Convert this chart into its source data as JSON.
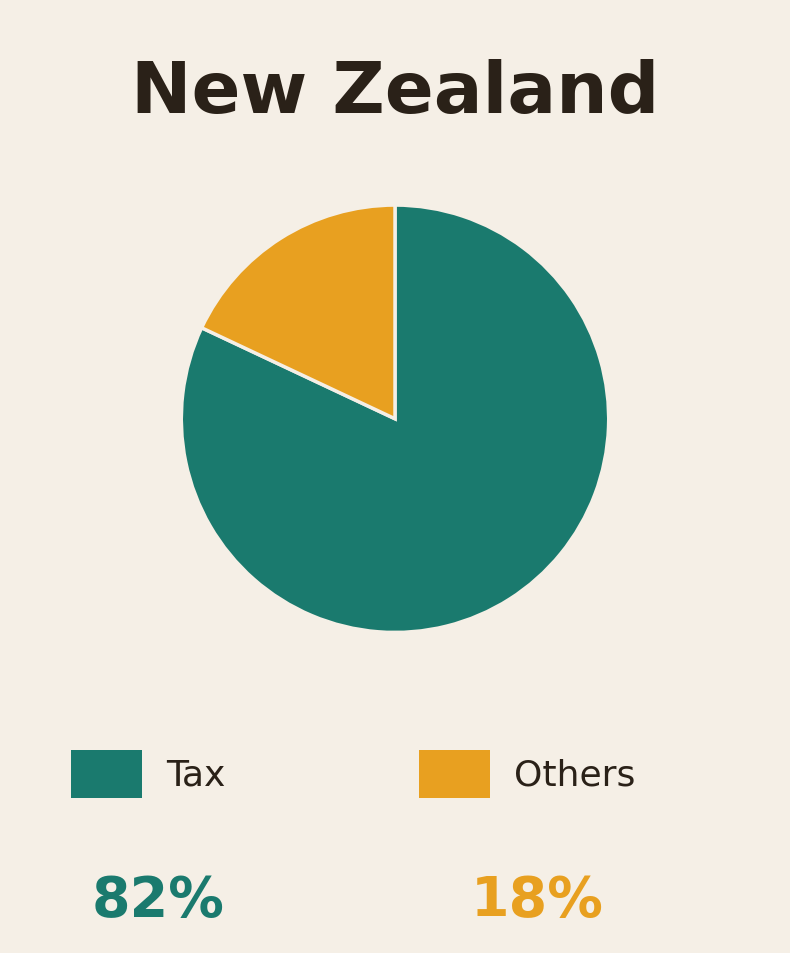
{
  "title": "New Zealand",
  "slices": [
    82,
    18
  ],
  "labels": [
    "Tax",
    "Others"
  ],
  "colors": [
    "#1a7a6e",
    "#e8a020"
  ],
  "percentages": [
    "82%",
    "18%"
  ],
  "percentage_colors": [
    "#1a7a6e",
    "#e8a020"
  ],
  "background_color": "#f5efe6",
  "title_color": "#2a2118",
  "legend_text_color": "#2a2118",
  "figsize": [
    7.9,
    9.54
  ],
  "dpi": 100,
  "wedge_edge_color": "#f5efe6",
  "wedge_linewidth": 2.5
}
